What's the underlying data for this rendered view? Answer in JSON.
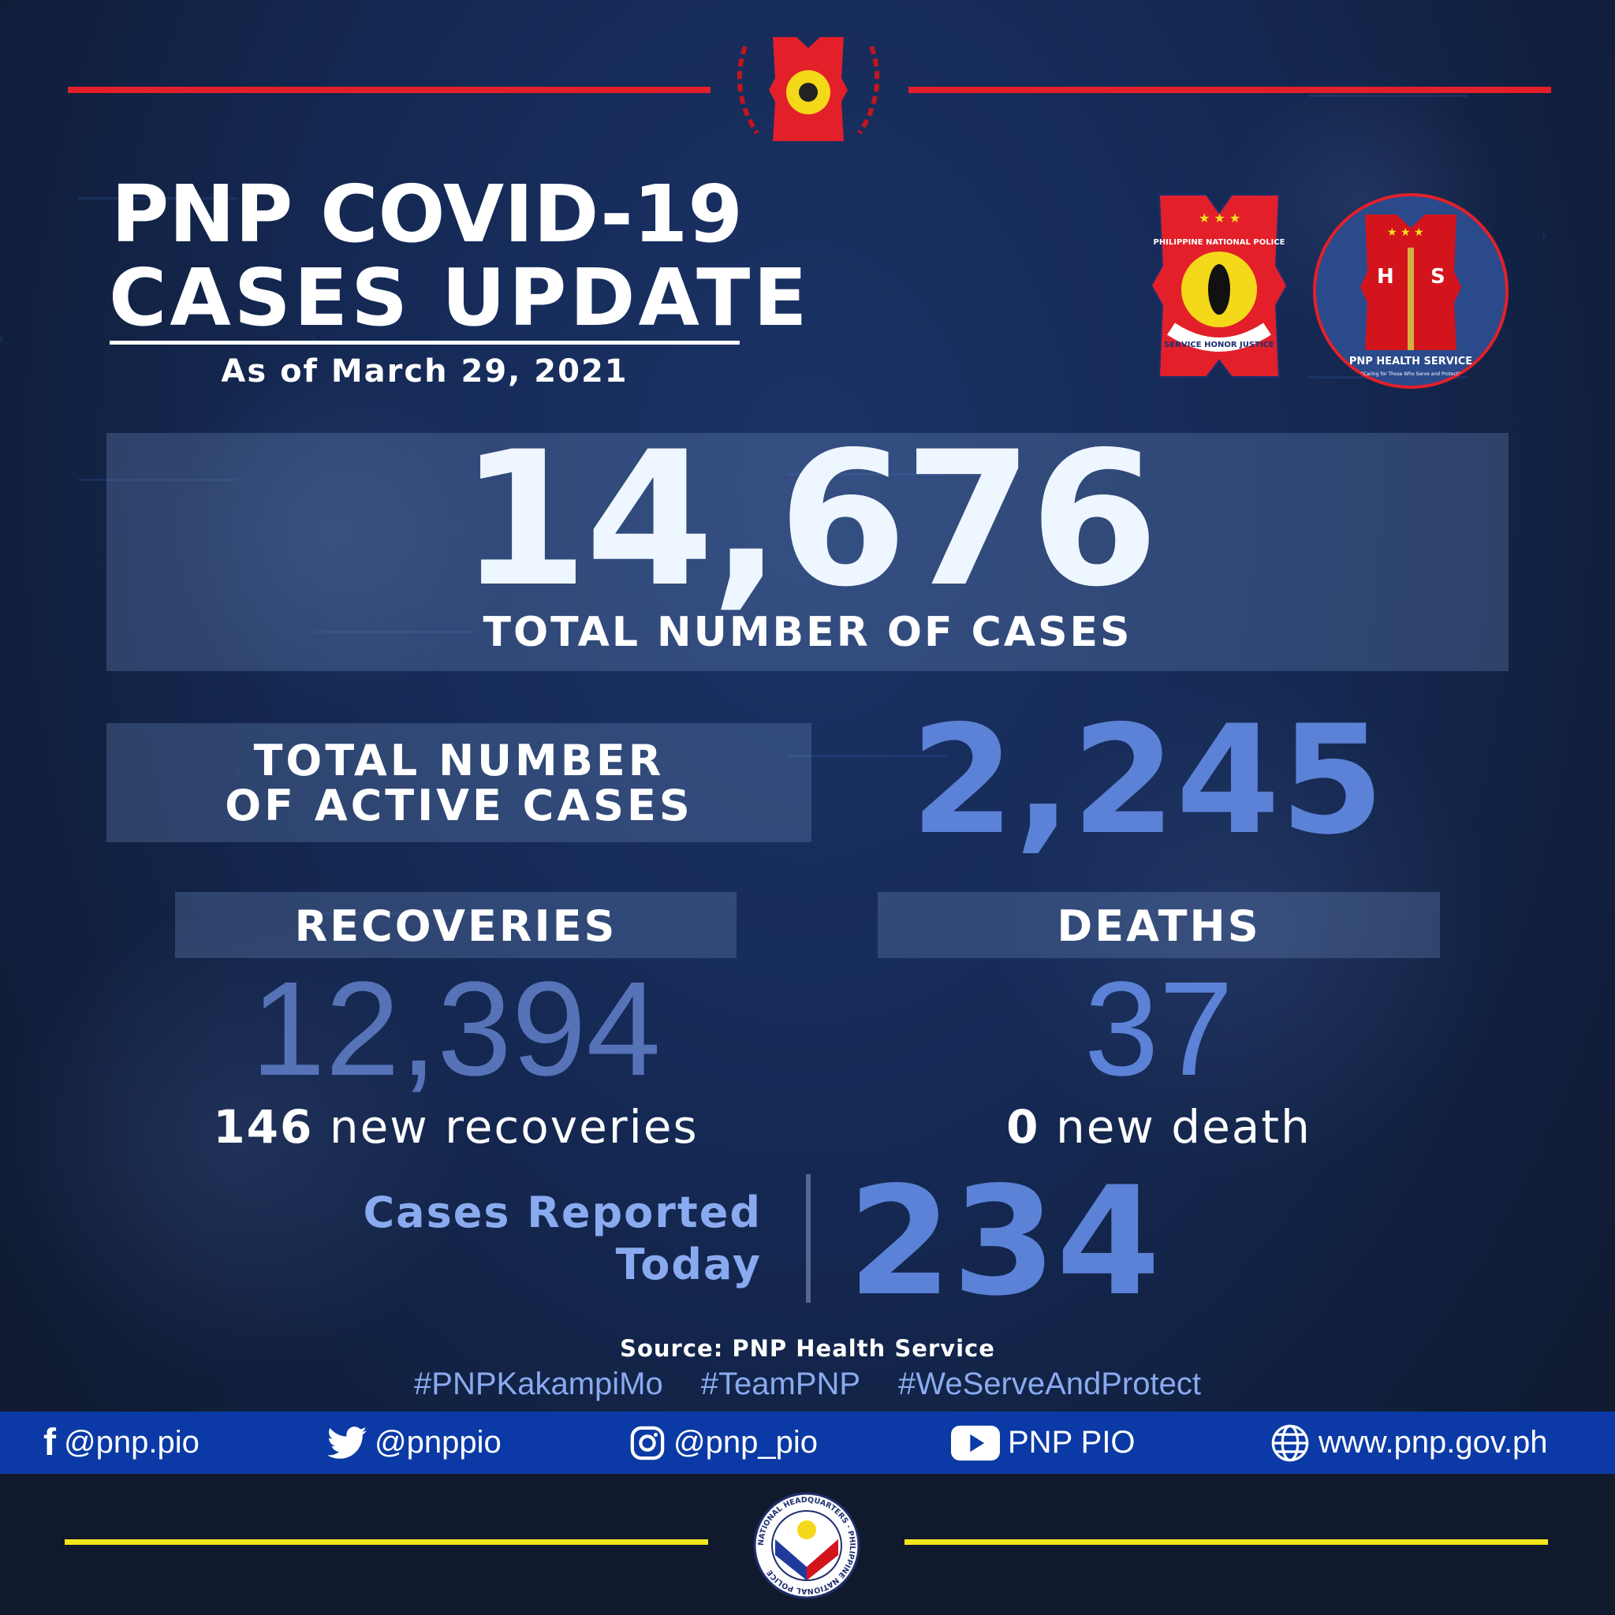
{
  "header": {
    "title_line1": "PNP COVID-19",
    "title_line2": "CASES UPDATE",
    "date": "As of March 29, 2021"
  },
  "logos": {
    "pnp_text": "PHILIPPINE NATIONAL POLICE",
    "pnp_motto": "SERVICE HONOR JUSTICE",
    "hs_title": "PNP HEALTH SERVICE",
    "hs_tagline": "\"Caring for Those Who Serve and Protect\"",
    "hq_text": "NATIONAL HEADQUARTERS · PHILIPPINE NATIONAL POLICE"
  },
  "total": {
    "value": "14,676",
    "label": "TOTAL NUMBER OF CASES"
  },
  "active": {
    "label_line1": "TOTAL NUMBER",
    "label_line2": "OF ACTIVE CASES",
    "value": "2,245"
  },
  "recoveries": {
    "label": "RECOVERIES",
    "value": "12,394",
    "new_count": "146",
    "new_label": "new recoveries"
  },
  "deaths": {
    "label": "DEATHS",
    "value": "37",
    "new_count": "0",
    "new_label": "new death"
  },
  "today": {
    "label_line1": "Cases Reported",
    "label_line2": "Today",
    "value": "234"
  },
  "source": "Source: PNP Health Service",
  "hashtags": [
    "#PNPKakampiMo",
    "#TeamPNP",
    "#WeServeAndProtect"
  ],
  "social": [
    {
      "icon": "facebook-icon",
      "label": "@pnp.pio"
    },
    {
      "icon": "twitter-icon",
      "label": "@pnppio"
    },
    {
      "icon": "instagram-icon",
      "label": "@pnp_pio"
    },
    {
      "icon": "youtube-icon",
      "label": "PNP PIO"
    },
    {
      "icon": "globe-icon",
      "label": "www.pnp.gov.ph"
    }
  ],
  "colors": {
    "accent_red": "#e3202a",
    "accent_blue": "#5b82d6",
    "footer_bar": "#0b3aa6",
    "yellow_line": "#f4e51a"
  }
}
